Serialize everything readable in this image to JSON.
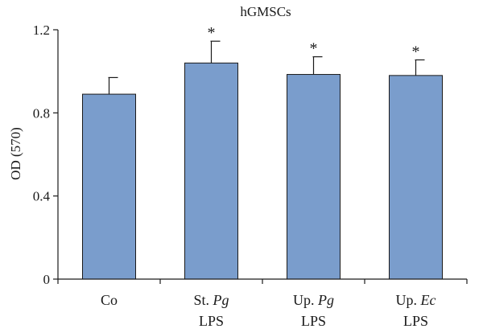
{
  "chart_data": {
    "type": "bar",
    "title": "hGMSCs",
    "ylabel": "OD (570)",
    "xlabel": "",
    "ylim": [
      0,
      1.2
    ],
    "yticks": [
      0,
      0.4,
      0.8,
      1.2
    ],
    "ytick_labels": [
      "0",
      "0.4",
      "0.8",
      "1.2"
    ],
    "categories": [
      {
        "line1": "Co",
        "line1_italic": "",
        "line2": ""
      },
      {
        "line1": "St. ",
        "line1_italic": "Pg",
        "line2": "LPS"
      },
      {
        "line1": "Up. ",
        "line1_italic": "Pg",
        "line2": "LPS"
      },
      {
        "line1": "Up. ",
        "line1_italic": "Ec",
        "line2": "LPS"
      }
    ],
    "values": [
      0.89,
      1.04,
      0.985,
      0.98
    ],
    "error_upper": [
      0.08,
      0.105,
      0.085,
      0.075
    ],
    "significance": [
      "",
      "*",
      "*",
      "*"
    ],
    "bar_color": "#7a9dcc",
    "bar_edge_color": "#1a1a1a",
    "grid": false
  }
}
